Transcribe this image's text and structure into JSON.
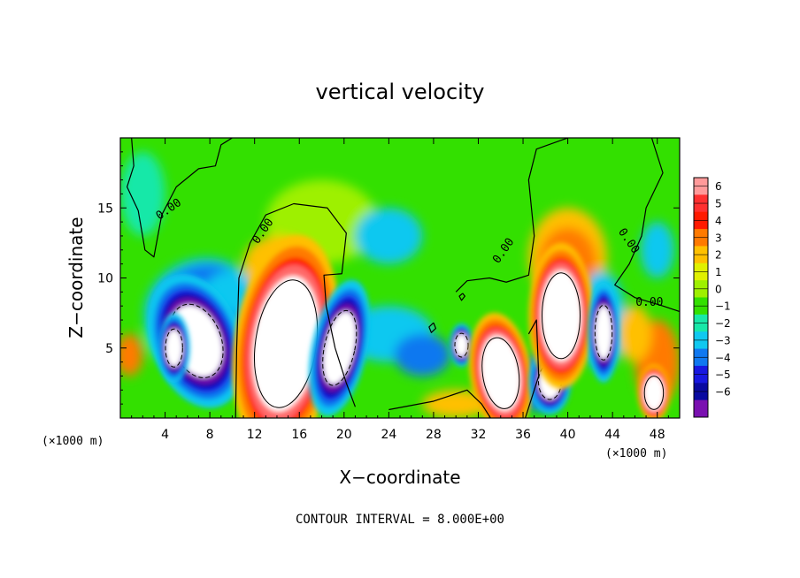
{
  "chart_data": {
    "type": "heatmap",
    "title": "vertical velocity",
    "xlabel": "X−coordinate",
    "ylabel": "Z−coordinate",
    "x_unit_label": "(×1000 m)",
    "y_unit_label": "(×1000 m)",
    "xlim": [
      0,
      50
    ],
    "ylim": [
      0,
      20
    ],
    "x_ticks": [
      "4",
      "8",
      "12",
      "16",
      "20",
      "24",
      "28",
      "32",
      "36",
      "40",
      "44",
      "48"
    ],
    "y_ticks": [
      "5",
      "10",
      "15"
    ],
    "contour_interval_text": "CONTOUR INTERVAL = 8.000E+00",
    "contour_labels": [
      "0.00",
      "0.00",
      "0.00",
      "0.00",
      "0.00"
    ],
    "colorbar": {
      "labels": [
        "6",
        "5",
        "4",
        "3",
        "2",
        "1",
        "0",
        "−1",
        "−2",
        "−3",
        "−4",
        "−5",
        "−6"
      ],
      "colors": [
        "#ff9a9a",
        "#ff3030",
        "#ff1a00",
        "#ff7a00",
        "#ffc000",
        "#e0f000",
        "#9ef000",
        "#33e000",
        "#18e8a8",
        "#10c8f0",
        "#1078f0",
        "#1818e0",
        "#0a0aa0",
        "#7a10b0"
      ]
    },
    "features": [
      {
        "sign": "down",
        "x": 6.8,
        "z": 5.5,
        "dx": 2.6,
        "dz": 3.2,
        "rot": -20
      },
      {
        "sign": "down",
        "x": 4.8,
        "z": 5.0,
        "dx": 0.9,
        "dz": 1.6,
        "rot": 0
      },
      {
        "sign": "up",
        "x": 14.8,
        "z": 5.3,
        "dx": 3.2,
        "dz": 5.4,
        "rot": 8
      },
      {
        "sign": "down",
        "x": 19.6,
        "z": 5.0,
        "dx": 1.6,
        "dz": 3.2,
        "rot": 12
      },
      {
        "sign": "down",
        "x": 30.5,
        "z": 5.2,
        "dx": 0.7,
        "dz": 1.0,
        "rot": 0
      },
      {
        "sign": "up",
        "x": 34.0,
        "z": 3.2,
        "dx": 1.9,
        "dz": 3.0,
        "rot": -8
      },
      {
        "sign": "down",
        "x": 38.4,
        "z": 2.6,
        "dx": 1.2,
        "dz": 1.5,
        "rot": 0
      },
      {
        "sign": "up",
        "x": 39.4,
        "z": 7.3,
        "dx": 2.0,
        "dz": 3.6,
        "rot": 0
      },
      {
        "sign": "down",
        "x": 43.2,
        "z": 6.1,
        "dx": 0.9,
        "dz": 2.3,
        "rot": 0
      },
      {
        "sign": "up",
        "x": 47.7,
        "z": 1.8,
        "dx": 1.0,
        "dz": 1.4,
        "rot": 0
      }
    ]
  }
}
